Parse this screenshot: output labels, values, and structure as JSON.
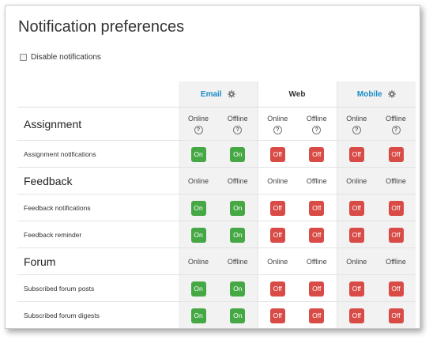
{
  "page": {
    "title": "Notification preferences",
    "disable_label": "Disable notifications",
    "status_online": "Online",
    "status_offline": "Offline",
    "help_glyph": "?",
    "on_label": "On",
    "off_label": "Off"
  },
  "processors": [
    {
      "name": "Email",
      "has_settings": true,
      "link_color": "#1a8bc7"
    },
    {
      "name": "Web",
      "has_settings": false
    },
    {
      "name": "Mobile",
      "has_settings": true,
      "link_color": "#1a8bc7"
    }
  ],
  "sections": [
    {
      "name": "Assignment",
      "show_help": true,
      "items": [
        {
          "name": "Assignment notifications",
          "states": [
            "On",
            "On",
            "Off",
            "Off",
            "Off",
            "Off"
          ]
        }
      ]
    },
    {
      "name": "Feedback",
      "show_help": false,
      "items": [
        {
          "name": "Feedback notifications",
          "states": [
            "On",
            "On",
            "Off",
            "Off",
            "Off",
            "Off"
          ]
        },
        {
          "name": "Feedback reminder",
          "states": [
            "On",
            "On",
            "Off",
            "Off",
            "Off",
            "Off"
          ]
        }
      ]
    },
    {
      "name": "Forum",
      "show_help": false,
      "items": [
        {
          "name": "Subscribed forum posts",
          "states": [
            "On",
            "On",
            "Off",
            "Off",
            "Off",
            "Off"
          ]
        },
        {
          "name": "Subscribed forum digests",
          "states": [
            "On",
            "On",
            "Off",
            "Off",
            "Off",
            "Off"
          ]
        }
      ]
    }
  ],
  "colors": {
    "on": "#45a845",
    "off": "#d94b46"
  },
  "icons": {
    "settings": "gear-icon",
    "help": "question-circle-icon",
    "checkbox": "checkbox-icon"
  }
}
